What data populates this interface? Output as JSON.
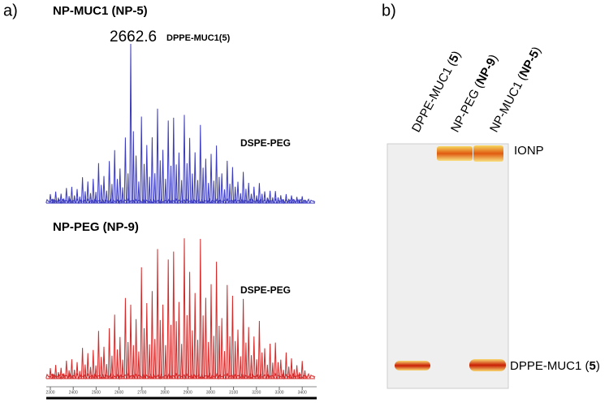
{
  "panel_a": {
    "label": "a)",
    "top_title": "NP-MUC1 (NP-5)",
    "peak_label": "2662.6",
    "peak_name": "DPPE-MUC1(5)",
    "top_side_label": "DSPE-PEG",
    "bottom_title": "NP-PEG (NP-9)",
    "bottom_side_label": "DSPE-PEG",
    "axis_ticks": [
      "2300",
      "2400",
      "2500",
      "2600",
      "2700",
      "2800",
      "2900",
      "3000",
      "3100",
      "3200",
      "3300",
      "3400"
    ]
  },
  "panel_b": {
    "label": "b)",
    "lanes": [
      [
        "DPPE-MUC1 (",
        "5",
        ")"
      ],
      [
        "NP-PEG (",
        "NP-9",
        ")"
      ],
      [
        "NP-MUC1 (",
        "NP-5",
        ")"
      ]
    ],
    "band_top_label": "IONP",
    "band_bottom_label": [
      "DPPE-MUC1 (",
      "5",
      ")"
    ]
  }
}
